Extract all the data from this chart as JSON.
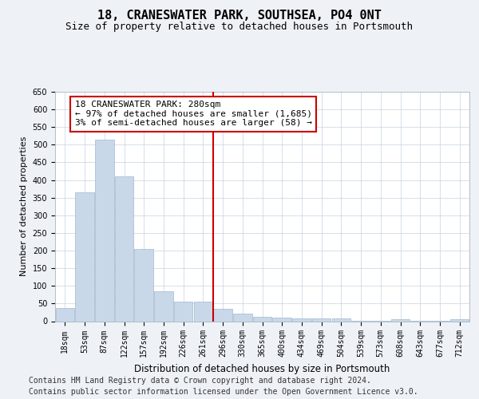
{
  "title": "18, CRANESWATER PARK, SOUTHSEA, PO4 0NT",
  "subtitle": "Size of property relative to detached houses in Portsmouth",
  "xlabel": "Distribution of detached houses by size in Portsmouth",
  "ylabel": "Number of detached properties",
  "categories": [
    "18sqm",
    "53sqm",
    "87sqm",
    "122sqm",
    "157sqm",
    "192sqm",
    "226sqm",
    "261sqm",
    "296sqm",
    "330sqm",
    "365sqm",
    "400sqm",
    "434sqm",
    "469sqm",
    "504sqm",
    "539sqm",
    "573sqm",
    "608sqm",
    "643sqm",
    "677sqm",
    "712sqm"
  ],
  "values": [
    37,
    365,
    515,
    410,
    205,
    85,
    55,
    55,
    35,
    22,
    12,
    10,
    8,
    8,
    8,
    2,
    2,
    6,
    1,
    1,
    6
  ],
  "bar_color": "#c8d8e8",
  "bar_edgecolor": "#a0b8d0",
  "vline_index": 7.5,
  "vline_color": "#cc0000",
  "annotation_text": "18 CRANESWATER PARK: 280sqm\n← 97% of detached houses are smaller (1,685)\n3% of semi-detached houses are larger (58) →",
  "annotation_box_color": "#cc0000",
  "ylim": [
    0,
    650
  ],
  "yticks": [
    0,
    50,
    100,
    150,
    200,
    250,
    300,
    350,
    400,
    450,
    500,
    550,
    600,
    650
  ],
  "footer1": "Contains HM Land Registry data © Crown copyright and database right 2024.",
  "footer2": "Contains public sector information licensed under the Open Government Licence v3.0.",
  "background_color": "#eef2f7",
  "plot_background": "#ffffff",
  "grid_color": "#c5d3e0",
  "title_fontsize": 11,
  "subtitle_fontsize": 9,
  "tick_fontsize": 7,
  "ylabel_fontsize": 8,
  "xlabel_fontsize": 8.5,
  "footer_fontsize": 7,
  "annotation_fontsize": 8
}
